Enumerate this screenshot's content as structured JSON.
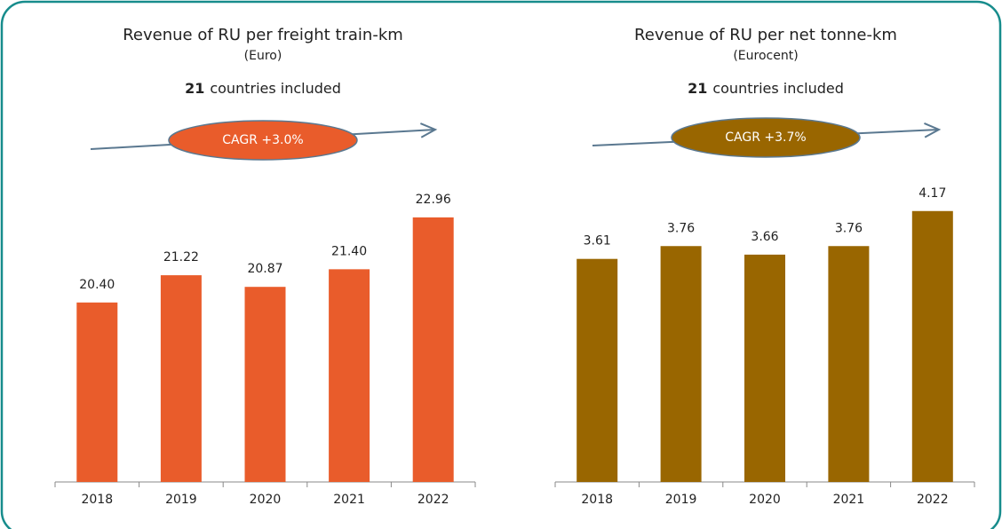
{
  "chart_data": [
    {
      "type": "bar",
      "title": "Revenue of RU per freight train-km",
      "subtitle": "(Euro)",
      "note_bold": "21",
      "note_text": "countries included",
      "annotation": "CAGR +3.0%",
      "categories": [
        "2018",
        "2019",
        "2020",
        "2021",
        "2022"
      ],
      "values": [
        20.4,
        21.22,
        20.87,
        21.4,
        22.96
      ],
      "value_labels": [
        "20.40",
        "21.22",
        "20.87",
        "21.40",
        "22.96"
      ],
      "color": "#e95c2b",
      "ylim": [
        15,
        24
      ]
    },
    {
      "type": "bar",
      "title": "Revenue of RU per net tonne-km",
      "subtitle": "(Eurocent)",
      "note_bold": "21",
      "note_text": "countries included",
      "annotation": "CAGR +3.7%",
      "categories": [
        "2018",
        "2019",
        "2020",
        "2021",
        "2022"
      ],
      "values": [
        3.61,
        3.76,
        3.66,
        3.76,
        4.17
      ],
      "value_labels": [
        "3.61",
        "3.76",
        "3.66",
        "3.76",
        "4.17"
      ],
      "color": "#996600",
      "ylim": [
        1,
        4.5
      ]
    }
  ]
}
